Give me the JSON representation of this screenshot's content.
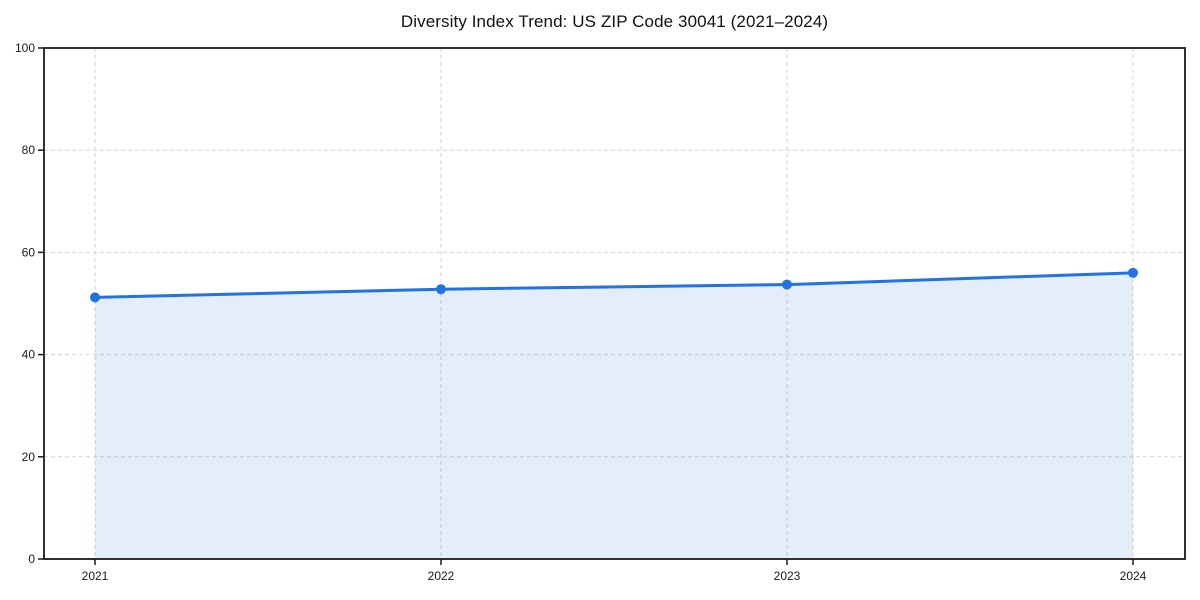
{
  "figure": {
    "background": "#ffffff"
  },
  "chart_data": {
    "type": "line",
    "title": "Diversity Index Trend: US ZIP Code 30041 (2021–2024)",
    "x": [
      2021,
      2022,
      2023,
      2024
    ],
    "categories": [
      "2021",
      "2022",
      "2023",
      "2024"
    ],
    "series": [
      {
        "name": "Diversity Index",
        "values": [
          51.2,
          52.8,
          53.7,
          56.0
        ]
      }
    ],
    "xlabel": "",
    "ylabel": "",
    "ylim": [
      0,
      100
    ],
    "yticks": [
      0,
      20,
      40,
      60,
      80,
      100
    ],
    "grid": "dashed, both axes",
    "legend": "none",
    "area_fill": true,
    "marker": "circle",
    "colors": {
      "line": "#2272e2",
      "marker": "#2272e2",
      "fill": "rgba(34,114,226,0.12)",
      "grid": "#d4d4d4",
      "axis": "#1a1a1a",
      "tick_label": "#1a1a1a",
      "title": "#111111"
    }
  }
}
